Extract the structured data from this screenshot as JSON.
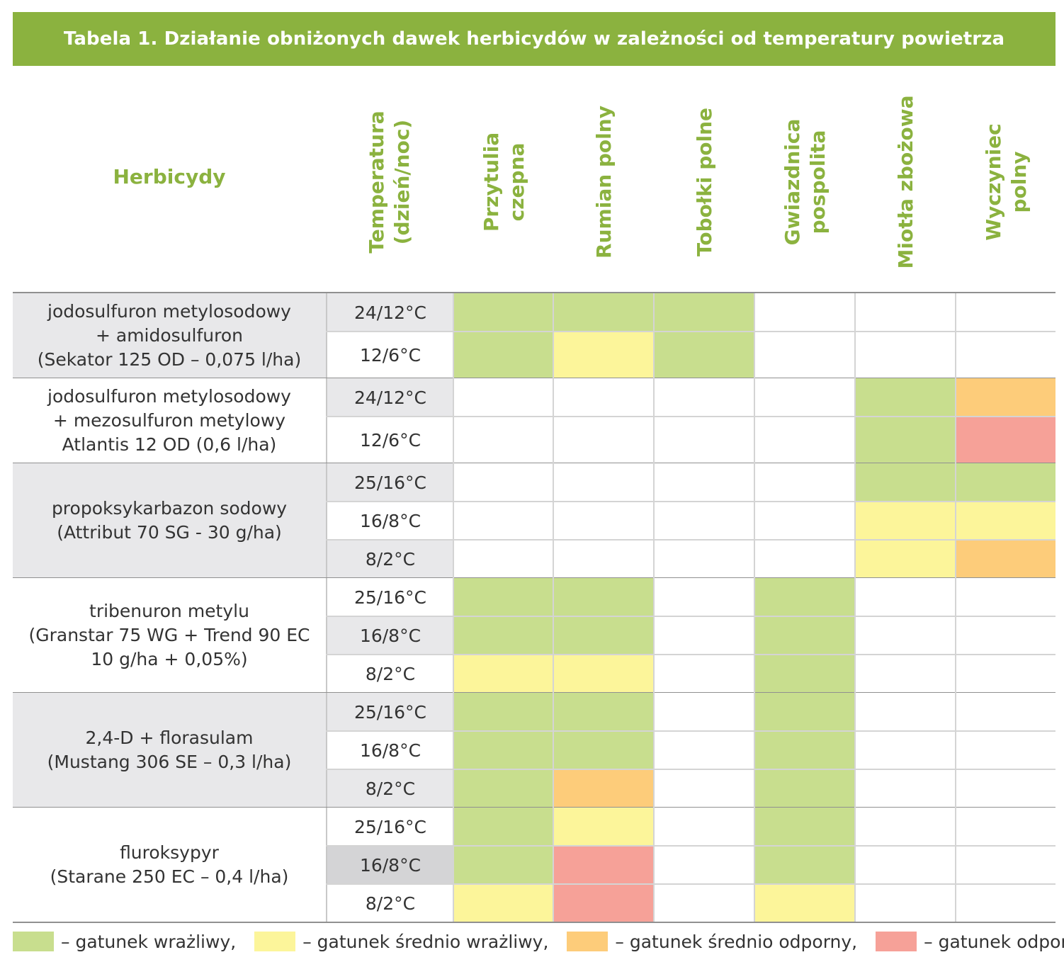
{
  "title": "Tabela 1. Działanie obniżonych dawek herbicydów w zależności od temperatury powietrza",
  "header": {
    "herbicides_label": "Herbicydy",
    "temperature_label": "Temperatura\n(dzień/noc)",
    "species": [
      "Przytulia czepna",
      "Rumian polny",
      "Tobołki polne",
      "Gwiazdnica\npospolita",
      "Miotła zbożowa",
      "Wyczyniec polny"
    ]
  },
  "colors": {
    "title_bg": "#8bb23f",
    "header_text": "#8bb23f",
    "group_bg_gray": "#e8e8ea",
    "wrazliwy": "#c8de8e",
    "srednio_wrazliwy": "#fcf59a",
    "srednio_odporny": "#fdcc7a",
    "odporny": "#f6a198",
    "none": "#ffffff"
  },
  "groups": [
    {
      "herbicide": [
        "jodosulfuron metylosodowy",
        "+ amidosulfuron",
        "(Sekator 125 OD – 0,075 l/ha)"
      ],
      "shaded": true,
      "rows": [
        {
          "temp": "24/12°C",
          "temp_bg": "gray",
          "cells": [
            "W",
            "W",
            "W",
            "",
            "",
            ""
          ]
        },
        {
          "temp": "12/6°C",
          "temp_bg": "white",
          "cells": [
            "W",
            "SW",
            "W",
            "",
            "",
            ""
          ]
        }
      ]
    },
    {
      "herbicide": [
        "jodosulfuron metylosodowy",
        "+ mezosulfuron metylowy",
        "Atlantis 12 OD (0,6 l/ha)"
      ],
      "shaded": false,
      "rows": [
        {
          "temp": "24/12°C",
          "temp_bg": "gray",
          "cells": [
            "",
            "",
            "",
            "",
            "W",
            "SO"
          ]
        },
        {
          "temp": "12/6°C",
          "temp_bg": "white",
          "cells": [
            "",
            "",
            "",
            "",
            "W",
            "O"
          ]
        }
      ]
    },
    {
      "herbicide": [
        "propoksykarbazon sodowy",
        "(Attribut 70 SG - 30 g/ha)"
      ],
      "shaded": true,
      "rows": [
        {
          "temp": "25/16°C",
          "temp_bg": "gray",
          "cells": [
            "",
            "",
            "",
            "",
            "W",
            "W"
          ]
        },
        {
          "temp": "16/8°C",
          "temp_bg": "white",
          "cells": [
            "",
            "",
            "",
            "",
            "SW",
            "SW"
          ]
        },
        {
          "temp": "8/2°C",
          "temp_bg": "gray",
          "cells": [
            "",
            "",
            "",
            "",
            "SW",
            "SO"
          ]
        }
      ]
    },
    {
      "herbicide": [
        "tribenuron metylu",
        "(Granstar 75 WG + Trend 90 EC",
        "10 g/ha + 0,05%)"
      ],
      "shaded": false,
      "rows": [
        {
          "temp": "25/16°C",
          "temp_bg": "white",
          "cells": [
            "W",
            "W",
            "",
            "W",
            "",
            ""
          ]
        },
        {
          "temp": "16/8°C",
          "temp_bg": "gray",
          "cells": [
            "W",
            "W",
            "",
            "W",
            "",
            ""
          ]
        },
        {
          "temp": "8/2°C",
          "temp_bg": "white",
          "cells": [
            "SW",
            "SW",
            "",
            "W",
            "",
            ""
          ]
        }
      ]
    },
    {
      "herbicide": [
        "2,4-D + florasulam",
        "(Mustang 306 SE – 0,3 l/ha)"
      ],
      "shaded": true,
      "rows": [
        {
          "temp": "25/16°C",
          "temp_bg": "gray",
          "cells": [
            "W",
            "W",
            "",
            "W",
            "",
            ""
          ]
        },
        {
          "temp": "16/8°C",
          "temp_bg": "white",
          "cells": [
            "W",
            "W",
            "",
            "W",
            "",
            ""
          ]
        },
        {
          "temp": "8/2°C",
          "temp_bg": "gray",
          "cells": [
            "W",
            "SO",
            "",
            "W",
            "",
            ""
          ]
        }
      ]
    },
    {
      "herbicide": [
        "fluroksypyr",
        "(Starane 250 EC – 0,4 l/ha)"
      ],
      "shaded": false,
      "rows": [
        {
          "temp": "25/16°C",
          "temp_bg": "white",
          "cells": [
            "W",
            "SW",
            "",
            "W",
            "",
            ""
          ]
        },
        {
          "temp": "16/8°C",
          "temp_bg": "darkgray",
          "cells": [
            "W",
            "O",
            "",
            "W",
            "",
            ""
          ]
        },
        {
          "temp": "8/2°C",
          "temp_bg": "white",
          "cells": [
            "SW",
            "O",
            "",
            "SW",
            "",
            ""
          ]
        }
      ]
    }
  ],
  "legend": [
    {
      "key": "W",
      "label": "– gatunek wrażliwy,"
    },
    {
      "key": "SW",
      "label": "– gatunek średnio wrażliwy,"
    },
    {
      "key": "SO",
      "label": "– gatunek średnio odporny,"
    },
    {
      "key": "O",
      "label": "– gatunek odporn"
    }
  ]
}
